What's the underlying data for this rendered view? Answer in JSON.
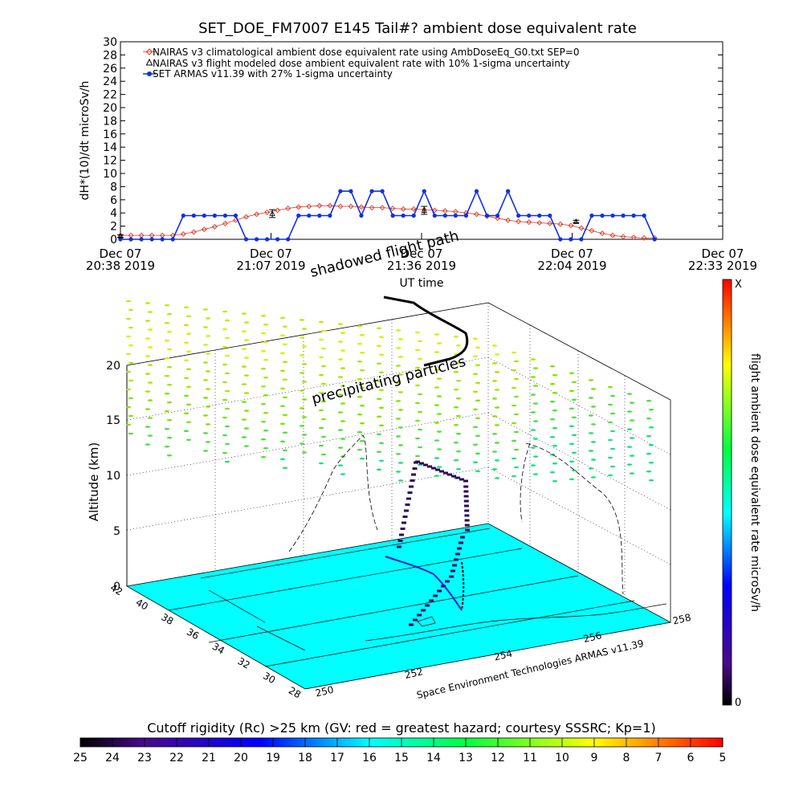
{
  "colors": {
    "nairas_clim": "#d83a2a",
    "armas": "#1030e0",
    "floor": "#00ffff",
    "flight_path": "#2a0a5a"
  },
  "chart_data": [
    {
      "type": "line",
      "title": "SET_DOE_FM7007  E145 Tail#? ambient dose equivalent rate",
      "ylabel": "dH*(10)/dt microSv/h",
      "xlabel": "UT time",
      "ylim": [
        0,
        30
      ],
      "y_ticks": [
        "0",
        "2",
        "4",
        "6",
        "8",
        "10",
        "12",
        "14",
        "16",
        "18",
        "20",
        "22",
        "24",
        "26",
        "28",
        "30"
      ],
      "x_ticks": [
        {
          "line1": "Dec 07",
          "line2": "20:38 2019"
        },
        {
          "line1": "Dec 07",
          "line2": "21:07 2019"
        },
        {
          "line1": "Dec 07",
          "line2": "21:36 2019"
        },
        {
          "line1": "Dec 07",
          "line2": "22:04 2019"
        },
        {
          "line1": "Dec 07",
          "line2": "22:33 2019"
        }
      ],
      "xlim_minutes": [
        0,
        115
      ],
      "legend_position": "top-left",
      "legend": [
        "NAIRAS v3 climatological ambient dose equivalent rate using AmbDoseEq_G0.txt SEP=0",
        "NAIRAS v3 flight modeled dose ambient equivalent rate with 10% 1-sigma uncertainty",
        "SET ARMAS v11.39 with 27% 1-sigma uncertainty"
      ],
      "series": [
        {
          "name": "NAIRAS v3 climatological ambient dose equivalent rate using AmbDoseEq_G0.txt SEP=0",
          "marker": "diamond",
          "x_minutes": [
            0,
            2,
            4,
            6,
            8,
            10,
            12,
            14,
            16,
            18,
            20,
            22,
            24,
            26,
            28,
            30,
            32,
            34,
            36,
            38,
            40,
            42,
            44,
            46,
            48,
            50,
            52,
            54,
            56,
            58,
            60,
            62,
            64,
            66,
            68,
            70,
            72,
            74,
            76,
            78,
            80,
            82,
            84,
            86,
            88,
            90,
            92,
            94,
            96,
            98,
            100,
            102
          ],
          "values": [
            0.6,
            0.6,
            0.6,
            0.6,
            0.6,
            0.6,
            0.8,
            1.1,
            1.5,
            1.9,
            2.4,
            2.9,
            3.4,
            3.8,
            4.1,
            4.4,
            4.7,
            4.9,
            5.0,
            5.1,
            5.1,
            5.0,
            5.0,
            4.9,
            4.8,
            4.8,
            4.7,
            4.6,
            4.6,
            4.5,
            4.4,
            4.3,
            4.2,
            4.0,
            3.8,
            3.5,
            3.2,
            2.9,
            2.7,
            2.6,
            2.5,
            2.4,
            2.3,
            2.1,
            1.7,
            1.3,
            0.9,
            0.6,
            0.4,
            0.3,
            0.2,
            0.2
          ]
        },
        {
          "name": "NAIRAS v3 flight modeled dose ambient equivalent rate with 10% 1-sigma uncertainty",
          "marker": "triangle",
          "x_minutes": [
            0,
            29,
            58,
            87
          ],
          "values": [
            0.5,
            3.9,
            4.4,
            2.7
          ],
          "errors": [
            0.05,
            0.6,
            0.6,
            0.2
          ]
        },
        {
          "name": "SET ARMAS v11.39 with 27% 1-sigma uncertainty",
          "marker": "filled-circle",
          "x_minutes": [
            0,
            2,
            4,
            6,
            8,
            10,
            12,
            14,
            16,
            18,
            20,
            22,
            24,
            26,
            28,
            30,
            32,
            34,
            36,
            38,
            40,
            42,
            44,
            46,
            48,
            50,
            52,
            54,
            56,
            58,
            60,
            62,
            64,
            66,
            68,
            70,
            72,
            74,
            76,
            78,
            80,
            82,
            84,
            86,
            88,
            90,
            92,
            94,
            96,
            98,
            100,
            102
          ],
          "values": [
            0,
            0,
            0,
            0,
            0,
            0,
            3.6,
            3.6,
            3.6,
            3.6,
            3.6,
            3.6,
            0,
            0,
            0,
            0,
            0,
            3.6,
            3.6,
            3.6,
            3.6,
            7.3,
            7.3,
            3.6,
            7.3,
            7.3,
            3.6,
            3.6,
            3.6,
            7.3,
            3.6,
            3.6,
            3.6,
            3.6,
            7.3,
            3.6,
            3.6,
            7.3,
            3.6,
            3.6,
            3.6,
            3.6,
            0,
            0,
            0,
            3.6,
            3.6,
            3.6,
            3.6,
            3.6,
            3.6,
            0
          ]
        }
      ]
    },
    {
      "type": "scatter",
      "zlabel": "Altitude (km)",
      "z_ticks": [
        "0",
        "5",
        "10",
        "15",
        "20"
      ],
      "lat_ticks": [
        "42",
        "40",
        "38",
        "36",
        "34",
        "32",
        "30",
        "28"
      ],
      "lon_ticks": [
        "250",
        "252",
        "254",
        "256",
        "258"
      ],
      "annotations": [
        "shadowed flight path",
        "precipitating particles"
      ],
      "credit": "Space Environment Technologies ARMAS v11.39",
      "colorbar_label": "flight ambient dose equivalent rate microSv/h",
      "colorbar_max": "X",
      "colorbar_min": "0"
    },
    {
      "type": "heatmap",
      "title": "Cutoff rigidity (Rc) >25 km (GV: red = greatest hazard; courtesy SSSRC; Kp=1)",
      "ticks": [
        "25",
        "24",
        "23",
        "22",
        "21",
        "20",
        "19",
        "18",
        "17",
        "16",
        "15",
        "14",
        "13",
        "12",
        "11",
        "10",
        "9",
        "8",
        "7",
        "6",
        "5"
      ]
    }
  ]
}
